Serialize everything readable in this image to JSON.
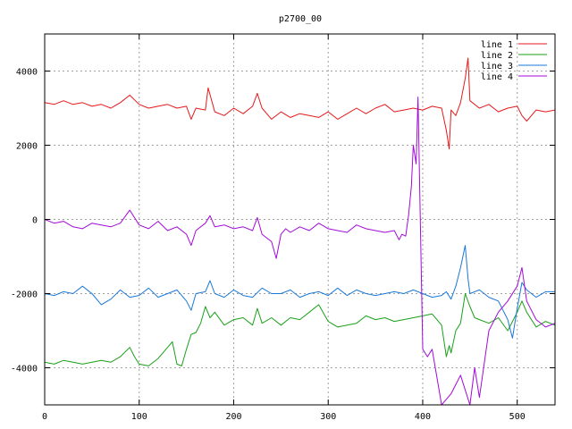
{
  "chart_data": {
    "type": "line",
    "title": "p2700_00",
    "xlabel": "",
    "ylabel": "",
    "xlim": [
      0,
      540
    ],
    "ylim": [
      -5000,
      5000
    ],
    "x_ticks": [
      0,
      100,
      200,
      300,
      400,
      500
    ],
    "y_ticks": [
      -4000,
      -2000,
      0,
      2000,
      4000
    ],
    "grid": true,
    "legend_position": "top-right",
    "series": [
      {
        "name": "line 1",
        "color": "#e41a1c",
        "x": [
          0,
          10,
          20,
          30,
          40,
          50,
          60,
          70,
          80,
          90,
          100,
          110,
          120,
          130,
          140,
          150,
          155,
          160,
          170,
          173,
          180,
          190,
          200,
          210,
          220,
          225,
          230,
          240,
          250,
          260,
          270,
          280,
          290,
          300,
          310,
          320,
          330,
          340,
          350,
          360,
          370,
          380,
          390,
          400,
          410,
          420,
          425,
          428,
          430,
          435,
          440,
          445,
          448,
          450,
          460,
          470,
          480,
          490,
          500,
          505,
          510,
          520,
          530,
          540
        ],
        "y": [
          3150,
          3100,
          3200,
          3100,
          3150,
          3050,
          3100,
          3000,
          3150,
          3350,
          3100,
          3000,
          3050,
          3100,
          3000,
          3050,
          2700,
          3000,
          2950,
          3550,
          2900,
          2800,
          3000,
          2850,
          3050,
          3400,
          3000,
          2700,
          2900,
          2750,
          2850,
          2800,
          2750,
          2900,
          2700,
          2850,
          3000,
          2850,
          3000,
          3100,
          2900,
          2950,
          3000,
          2950,
          3050,
          3000,
          2400,
          1900,
          2950,
          2800,
          3150,
          3800,
          4350,
          3200,
          3000,
          3100,
          2900,
          3000,
          3050,
          2800,
          2650,
          2950,
          2900,
          2950
        ]
      },
      {
        "name": "line 2",
        "color": "#1aa01a",
        "x": [
          0,
          10,
          20,
          30,
          40,
          50,
          60,
          70,
          80,
          90,
          95,
          100,
          110,
          120,
          130,
          135,
          140,
          145,
          150,
          155,
          160,
          165,
          170,
          175,
          180,
          190,
          200,
          210,
          220,
          225,
          230,
          240,
          250,
          260,
          270,
          280,
          290,
          300,
          310,
          320,
          330,
          340,
          350,
          360,
          370,
          380,
          390,
          400,
          410,
          420,
          425,
          428,
          430,
          435,
          440,
          445,
          450,
          455,
          460,
          470,
          480,
          490,
          500,
          505,
          510,
          520,
          530,
          540
        ],
        "y": [
          -3850,
          -3900,
          -3800,
          -3850,
          -3900,
          -3850,
          -3800,
          -3850,
          -3700,
          -3450,
          -3700,
          -3900,
          -3950,
          -3750,
          -3450,
          -3300,
          -3900,
          -3950,
          -3500,
          -3100,
          -3050,
          -2800,
          -2350,
          -2650,
          -2500,
          -2850,
          -2700,
          -2650,
          -2850,
          -2400,
          -2800,
          -2650,
          -2850,
          -2650,
          -2700,
          -2500,
          -2300,
          -2750,
          -2900,
          -2850,
          -2800,
          -2600,
          -2700,
          -2650,
          -2750,
          -2700,
          -2650,
          -2600,
          -2550,
          -2850,
          -3700,
          -3400,
          -3600,
          -3000,
          -2800,
          -2000,
          -2350,
          -2650,
          -2700,
          -2800,
          -2650,
          -3000,
          -2500,
          -2200,
          -2500,
          -2900,
          -2750,
          -2850
        ]
      },
      {
        "name": "line 3",
        "color": "#1a78d8",
        "x": [
          0,
          10,
          20,
          30,
          40,
          50,
          60,
          70,
          80,
          90,
          100,
          110,
          120,
          130,
          140,
          150,
          155,
          160,
          170,
          175,
          180,
          190,
          200,
          210,
          220,
          230,
          240,
          250,
          260,
          270,
          280,
          290,
          300,
          310,
          320,
          330,
          340,
          350,
          360,
          370,
          380,
          390,
          400,
          410,
          420,
          425,
          430,
          435,
          440,
          445,
          448,
          450,
          460,
          470,
          480,
          490,
          495,
          500,
          505,
          510,
          520,
          530,
          540
        ],
        "y": [
          -2000,
          -2050,
          -1950,
          -2000,
          -1800,
          -2000,
          -2300,
          -2150,
          -1900,
          -2100,
          -2050,
          -1850,
          -2100,
          -2000,
          -1900,
          -2200,
          -2450,
          -2000,
          -1950,
          -1650,
          -2000,
          -2100,
          -1900,
          -2050,
          -2100,
          -1850,
          -2000,
          -2000,
          -1900,
          -2100,
          -2000,
          -1950,
          -2050,
          -1850,
          -2050,
          -1900,
          -2000,
          -2050,
          -2000,
          -1950,
          -2000,
          -1900,
          -2000,
          -2100,
          -2050,
          -1950,
          -2150,
          -1800,
          -1300,
          -700,
          -1600,
          -2000,
          -1900,
          -2100,
          -2200,
          -2700,
          -3200,
          -2400,
          -1700,
          -1900,
          -2100,
          -1950,
          -1950
        ]
      },
      {
        "name": "line 4",
        "color": "#a30ad8",
        "x": [
          0,
          10,
          20,
          30,
          40,
          50,
          60,
          70,
          80,
          90,
          100,
          110,
          120,
          130,
          140,
          150,
          155,
          160,
          170,
          175,
          180,
          190,
          200,
          210,
          220,
          225,
          230,
          240,
          245,
          250,
          255,
          260,
          270,
          280,
          290,
          300,
          310,
          320,
          330,
          340,
          350,
          360,
          370,
          375,
          378,
          382,
          385,
          388,
          390,
          393,
          395,
          400,
          405,
          410,
          420,
          430,
          440,
          450,
          455,
          460,
          470,
          480,
          490,
          500,
          505,
          510,
          520,
          530,
          540
        ],
        "y": [
          0,
          -100,
          -50,
          -200,
          -250,
          -100,
          -150,
          -200,
          -100,
          250,
          -150,
          -250,
          -50,
          -300,
          -200,
          -400,
          -700,
          -300,
          -100,
          100,
          -200,
          -150,
          -250,
          -200,
          -300,
          50,
          -400,
          -600,
          -1050,
          -400,
          -250,
          -350,
          -200,
          -300,
          -100,
          -250,
          -300,
          -350,
          -150,
          -250,
          -300,
          -350,
          -300,
          -550,
          -400,
          -450,
          100,
          900,
          2000,
          1500,
          3300,
          -3500,
          -3700,
          -3500,
          -5000,
          -4700,
          -4200,
          -5000,
          -4000,
          -4800,
          -3000,
          -2500,
          -2200,
          -1800,
          -1300,
          -2200,
          -2700,
          -2900,
          -2800
        ]
      }
    ]
  }
}
